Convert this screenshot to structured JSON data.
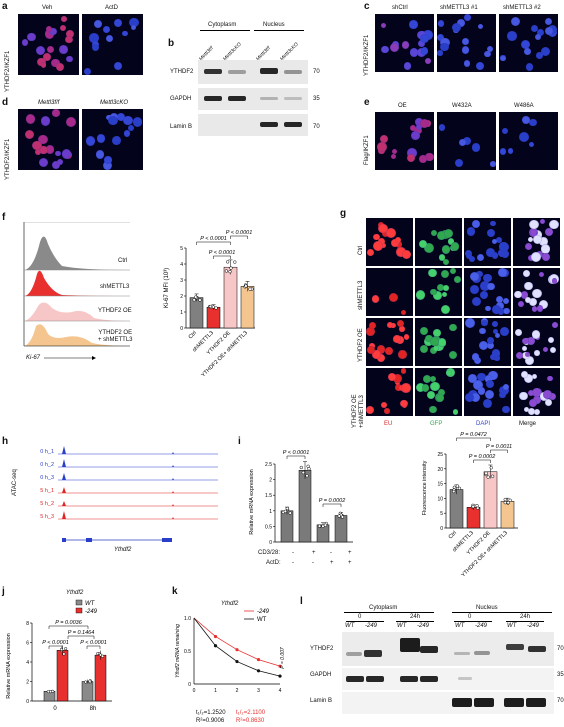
{
  "panels": {
    "a": {
      "label": "a",
      "ylabel": "YTHDF2/IKZF1",
      "cols": [
        "Veh",
        "ActD"
      ]
    },
    "b": {
      "label": "b",
      "groups": [
        "Cytoplasm",
        "Nucleus"
      ],
      "lanes": [
        "Mettl3f/f",
        "Mettl3cKO",
        "Mettl3f/f",
        "Mettl3cKO"
      ],
      "rows": [
        {
          "name": "YTHDF2",
          "mw": "70"
        },
        {
          "name": "GAPDH",
          "mw": "35"
        },
        {
          "name": "Lamin B",
          "mw": "70"
        }
      ]
    },
    "c": {
      "label": "c",
      "ylabel": "YTHDF2/IKZF1",
      "cols": [
        "shCtrl",
        "shMETTL3 #1",
        "shMETTL3 #2"
      ]
    },
    "d": {
      "label": "d",
      "ylabel": "YTHDF2/IKZF1",
      "cols": [
        "Mettl3f/f",
        "Mettl3cKO"
      ]
    },
    "e": {
      "label": "e",
      "ylabel": "Flag/IKZF1",
      "cols": [
        "OE",
        "W432A",
        "W486A"
      ]
    },
    "f": {
      "label": "f",
      "hist_labels": [
        "Ctrl",
        "shMETTL3",
        "YTHDF2 OE",
        "YTHDF2 OE\n+ shMETTL3"
      ],
      "xaxis": "Ki-67",
      "bar_ylabel": "Ki-67 MFI (10³)",
      "pvals": [
        "P < 0.0001",
        "P < 0.0001",
        "P < 0.0001"
      ],
      "categories": [
        "Ctrl",
        "shMETTL3",
        "YTHDF2 OE",
        "YTHDF2 OE+\nshMETTL3"
      ]
    },
    "g": {
      "label": "g",
      "rows": [
        "Ctrl",
        "shMETTL3",
        "YTHDF2 OE",
        "YTHDF2 OE\n+shMETTL3"
      ],
      "cols": [
        "EU",
        "GFP",
        "DAPI",
        "Merge"
      ]
    },
    "h": {
      "label": "h",
      "ylabel": "ATAC-seq",
      "tracks": [
        "0 h_1",
        "0 h_2",
        "0 h_3",
        "5 h_1",
        "5 h_2",
        "5 h_3"
      ],
      "gene": "Ythdf2"
    },
    "i": {
      "label": "i",
      "ylabel": "Relative mRNA expression",
      "pvals": [
        "P < 0.0001",
        "P = 0.0002"
      ],
      "treat_rows": [
        {
          "name": "CD3/28:",
          "vals": [
            "-",
            "+",
            "-",
            "+"
          ]
        },
        {
          "name": "ActD:",
          "vals": [
            "-",
            "-",
            "+",
            "+"
          ]
        }
      ],
      "fl_ylabel": "Fluorescence intensity",
      "fl_pvals": [
        "P = 0.0472",
        "P = 0.0011",
        "P = 0.0002"
      ],
      "fl_categories": [
        "Ctrl",
        "shMETTL3",
        "YTHDF2 OE",
        "YTHDF2 OE+\nshMETTL3"
      ]
    },
    "j": {
      "label": "j",
      "title": "Ythdf2",
      "ylabel": "Relative mRNA expression",
      "legend": [
        "WT",
        "-249"
      ],
      "pvals": [
        "P = 0.0036",
        "P = 0.1464",
        "P < 0.0001",
        "P < 0.0001"
      ],
      "xcats": [
        "0",
        "8h"
      ]
    },
    "k": {
      "label": "k",
      "title": "Ythdf2",
      "ylabel": "Ythdf2 mRNA remaining",
      "legend": [
        "-249",
        "WT"
      ],
      "pval": "P = 0.007",
      "stats_wt": [
        "t₁/₂=1.2520",
        "R²=0.9006"
      ],
      "stats_mut": [
        "t₁/₂=2.1100",
        "R²=0.8630"
      ]
    },
    "l": {
      "label": "l",
      "groups": [
        "Cytoplasm",
        "Nucleus"
      ],
      "times": [
        "0",
        "24h",
        "0",
        "24h"
      ],
      "lanes": [
        "WT",
        "-249",
        "WT",
        "-249",
        "WT",
        "-249",
        "WT",
        "-249"
      ],
      "rows": [
        {
          "name": "YTHDF2",
          "mw": "70"
        },
        {
          "name": "GAPDH",
          "mw": "35"
        },
        {
          "name": "Lamin B",
          "mw": "70"
        }
      ]
    }
  },
  "chart_data": [
    {
      "type": "bar",
      "id": "f-ki67",
      "title": "",
      "ylabel": "Ki-67 MFI (10³)",
      "ylim": [
        0,
        5
      ],
      "categories": [
        "Ctrl",
        "shMETTL3",
        "YTHDF2 OE",
        "YTHDF2 OE+ shMETTL3"
      ],
      "values": [
        1.9,
        1.3,
        3.8,
        2.6
      ],
      "colors": [
        "#808080",
        "#e8312f",
        "#f7c6c6",
        "#f5c58f"
      ]
    },
    {
      "type": "bar",
      "id": "i-mrna",
      "ylabel": "Relative mRNA expression",
      "ylim": [
        0,
        2.5
      ],
      "categories": [
        "-/-",
        "+/-",
        "-/+",
        "+/+"
      ],
      "values": [
        1.0,
        2.3,
        0.55,
        0.85
      ],
      "colors": [
        "#7a7a7a",
        "#7a7a7a",
        "#7a7a7a",
        "#7a7a7a"
      ]
    },
    {
      "type": "bar",
      "id": "i-fluor",
      "ylabel": "Fluorescence intensity",
      "ylim": [
        0,
        25
      ],
      "categories": [
        "Ctrl",
        "shMETTL3",
        "YTHDF2 OE",
        "YTHDF2 OE+ shMETTL3"
      ],
      "values": [
        13,
        7,
        19,
        9
      ],
      "colors": [
        "#808080",
        "#e8312f",
        "#f7c6c6",
        "#f5c58f"
      ]
    },
    {
      "type": "bar",
      "id": "j-ythdf2",
      "ylabel": "Relative mRNA expression",
      "ylim": [
        0,
        8
      ],
      "categories": [
        "0",
        "8h"
      ],
      "series": [
        {
          "name": "WT",
          "values": [
            1.0,
            2.0
          ]
        },
        {
          "name": "-249",
          "values": [
            5.2,
            4.7
          ]
        }
      ]
    },
    {
      "type": "line",
      "id": "k-decay",
      "ylabel": "Ythdf2 mRNA remaining",
      "xlim": [
        0,
        4
      ],
      "ylim": [
        0,
        1
      ],
      "x": [
        0,
        1,
        2,
        3,
        4
      ],
      "series": [
        {
          "name": "-249",
          "values": [
            1.0,
            0.72,
            0.52,
            0.37,
            0.27
          ]
        },
        {
          "name": "WT",
          "values": [
            1.0,
            0.58,
            0.34,
            0.2,
            0.12
          ]
        }
      ]
    }
  ]
}
